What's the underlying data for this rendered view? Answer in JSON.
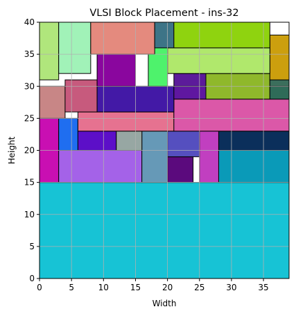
{
  "chart_data": {
    "type": "rectangles",
    "title": "VLSI Block Placement - ins-32",
    "xlabel": "Width",
    "ylabel": "Height",
    "xlim": [
      0,
      39
    ],
    "ylim": [
      0,
      40
    ],
    "x_ticks": [
      0,
      5,
      10,
      15,
      20,
      25,
      30,
      35
    ],
    "y_ticks": [
      0,
      5,
      10,
      15,
      20,
      25,
      30,
      35,
      40
    ],
    "grid": true,
    "blocks": [
      {
        "x": 0,
        "y": 0,
        "w": 39,
        "h": 15,
        "color": "#17c3d5"
      },
      {
        "x": 0,
        "y": 15,
        "w": 3,
        "h": 10,
        "color": "#c90fb2"
      },
      {
        "x": 3,
        "y": 15,
        "w": 13,
        "h": 8,
        "color": "#a462e8"
      },
      {
        "x": 16,
        "y": 15,
        "w": 4,
        "h": 8,
        "color": "#6699b7"
      },
      {
        "x": 20,
        "y": 15,
        "w": 4,
        "h": 4,
        "color": "#5b0a7d"
      },
      {
        "x": 25,
        "y": 15,
        "w": 3,
        "h": 8,
        "color": "#c13fc0"
      },
      {
        "x": 28,
        "y": 15,
        "w": 11,
        "h": 5,
        "color": "#0a9ab8"
      },
      {
        "x": 20,
        "y": 19,
        "w": 5,
        "h": 4,
        "color": "#554fbf"
      },
      {
        "x": 28,
        "y": 20,
        "w": 11,
        "h": 3,
        "color": "#0b2f5b"
      },
      {
        "x": 3,
        "y": 20,
        "w": 3,
        "h": 5,
        "color": "#1f6ef0"
      },
      {
        "x": 6,
        "y": 20,
        "w": 6,
        "h": 3,
        "color": "#5c0fc8"
      },
      {
        "x": 12,
        "y": 20,
        "w": 4,
        "h": 3,
        "color": "#97a7a3"
      },
      {
        "x": 6,
        "y": 23,
        "w": 15,
        "h": 3,
        "color": "#e67290"
      },
      {
        "x": 21,
        "y": 23,
        "w": 18,
        "h": 5,
        "color": "#db58a8"
      },
      {
        "x": 0,
        "y": 25,
        "w": 4,
        "h": 5,
        "color": "#c88686"
      },
      {
        "x": 4,
        "y": 26,
        "w": 5,
        "h": 5,
        "color": "#c75a7d"
      },
      {
        "x": 9,
        "y": 26,
        "w": 12,
        "h": 4,
        "color": "#4319a6"
      },
      {
        "x": 21,
        "y": 28,
        "w": 5,
        "h": 2,
        "color": "#5f17a0"
      },
      {
        "x": 21,
        "y": 30,
        "w": 5,
        "h": 2,
        "color": "#5c1b9a"
      },
      {
        "x": 26,
        "y": 28,
        "w": 10,
        "h": 4,
        "color": "#8fb82b"
      },
      {
        "x": 36,
        "y": 28,
        "w": 3,
        "h": 2,
        "color": "#2f6b58"
      },
      {
        "x": 36,
        "y": 30,
        "w": 3,
        "h": 1,
        "color": "#3b6e5c"
      },
      {
        "x": 36,
        "y": 31,
        "w": 3,
        "h": 7,
        "color": "#cc9f0e"
      },
      {
        "x": 20,
        "y": 32,
        "w": 16,
        "h": 4,
        "color": "#b0e86c"
      },
      {
        "x": 0,
        "y": 31,
        "w": 3,
        "h": 9,
        "color": "#b0e67c"
      },
      {
        "x": 3,
        "y": 32,
        "w": 5,
        "h": 8,
        "color": "#a1f2b8"
      },
      {
        "x": 9,
        "y": 30,
        "w": 6,
        "h": 7,
        "color": "#8a069e"
      },
      {
        "x": 17,
        "y": 30,
        "w": 3,
        "h": 7,
        "color": "#4ef26c"
      },
      {
        "x": 8,
        "y": 35,
        "w": 10,
        "h": 5,
        "color": "#e48a7e"
      },
      {
        "x": 18,
        "y": 36,
        "w": 3,
        "h": 4,
        "color": "#3d7487"
      },
      {
        "x": 21,
        "y": 36,
        "w": 15,
        "h": 4,
        "color": "#8fd30f"
      }
    ]
  }
}
